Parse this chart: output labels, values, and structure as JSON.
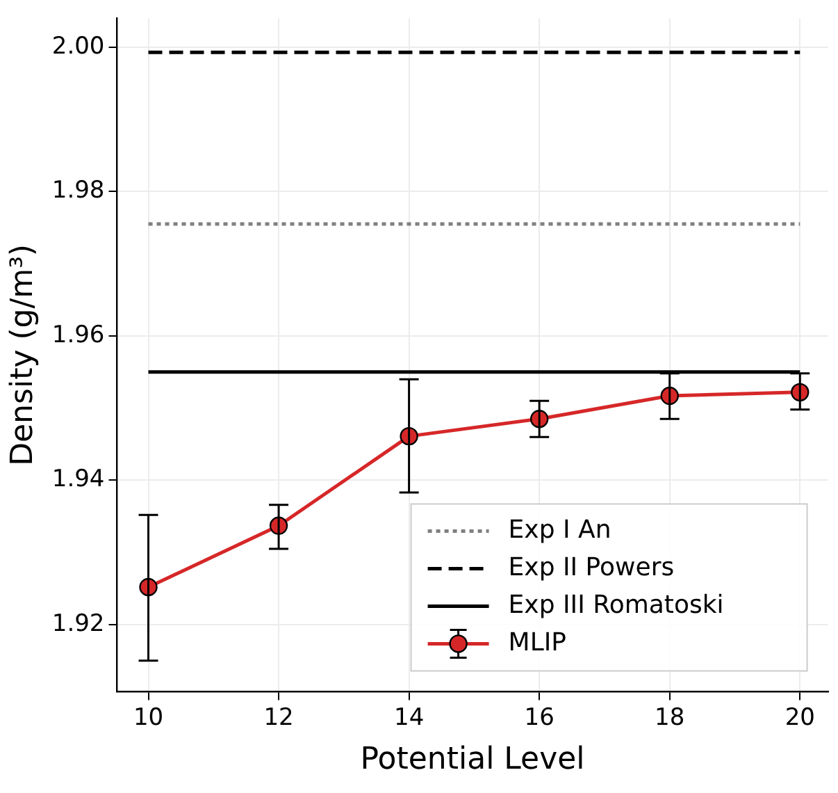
{
  "chart_data": {
    "type": "line",
    "xlabel": "Potential Level",
    "ylabel": "Density (g/m³)",
    "xlim": [
      9.52,
      20.43
    ],
    "xticks": [
      10,
      12,
      14,
      16,
      18,
      20
    ],
    "ylim": [
      1.9107,
      2.004
    ],
    "yticks": [
      {
        "value": 1.92,
        "label": "1.92"
      },
      {
        "value": 1.94,
        "label": "1.94"
      },
      {
        "value": 1.96,
        "label": "1.96"
      },
      {
        "value": 1.98,
        "label": "1.98"
      },
      {
        "value": 2.0,
        "label": "2.00"
      }
    ],
    "grid": true,
    "legend": "bottom right",
    "series": [
      {
        "name": "Exp I An",
        "color": "#808080",
        "x": [
          10,
          20
        ],
        "values": [
          1.9755,
          1.9755
        ],
        "line_style": "dotted",
        "marker": "none"
      },
      {
        "name": "Exp II Powers",
        "color": "#000000",
        "x": [
          10,
          20
        ],
        "values": [
          1.9993,
          1.9993
        ],
        "line_style": "dashed",
        "marker": "none"
      },
      {
        "name": "Exp III Romatoski",
        "color": "#000000",
        "x": [
          10,
          20
        ],
        "values": [
          1.955,
          1.955
        ],
        "line_style": "solid",
        "marker": "none"
      },
      {
        "name": "MLIP",
        "color": "#d62728",
        "x": [
          10,
          12,
          14,
          16,
          18,
          20
        ],
        "values": [
          1.9252,
          1.9337,
          1.9461,
          1.9485,
          1.9517,
          1.9522
        ],
        "line_style": "solid",
        "marker": "circle",
        "errors": [
          [
            1.915,
            1.9352
          ],
          [
            1.9305,
            1.9366
          ],
          [
            1.9383,
            1.954
          ],
          [
            1.946,
            1.951
          ],
          [
            1.9485,
            1.9548
          ],
          [
            1.9498,
            1.9548
          ]
        ]
      }
    ]
  }
}
